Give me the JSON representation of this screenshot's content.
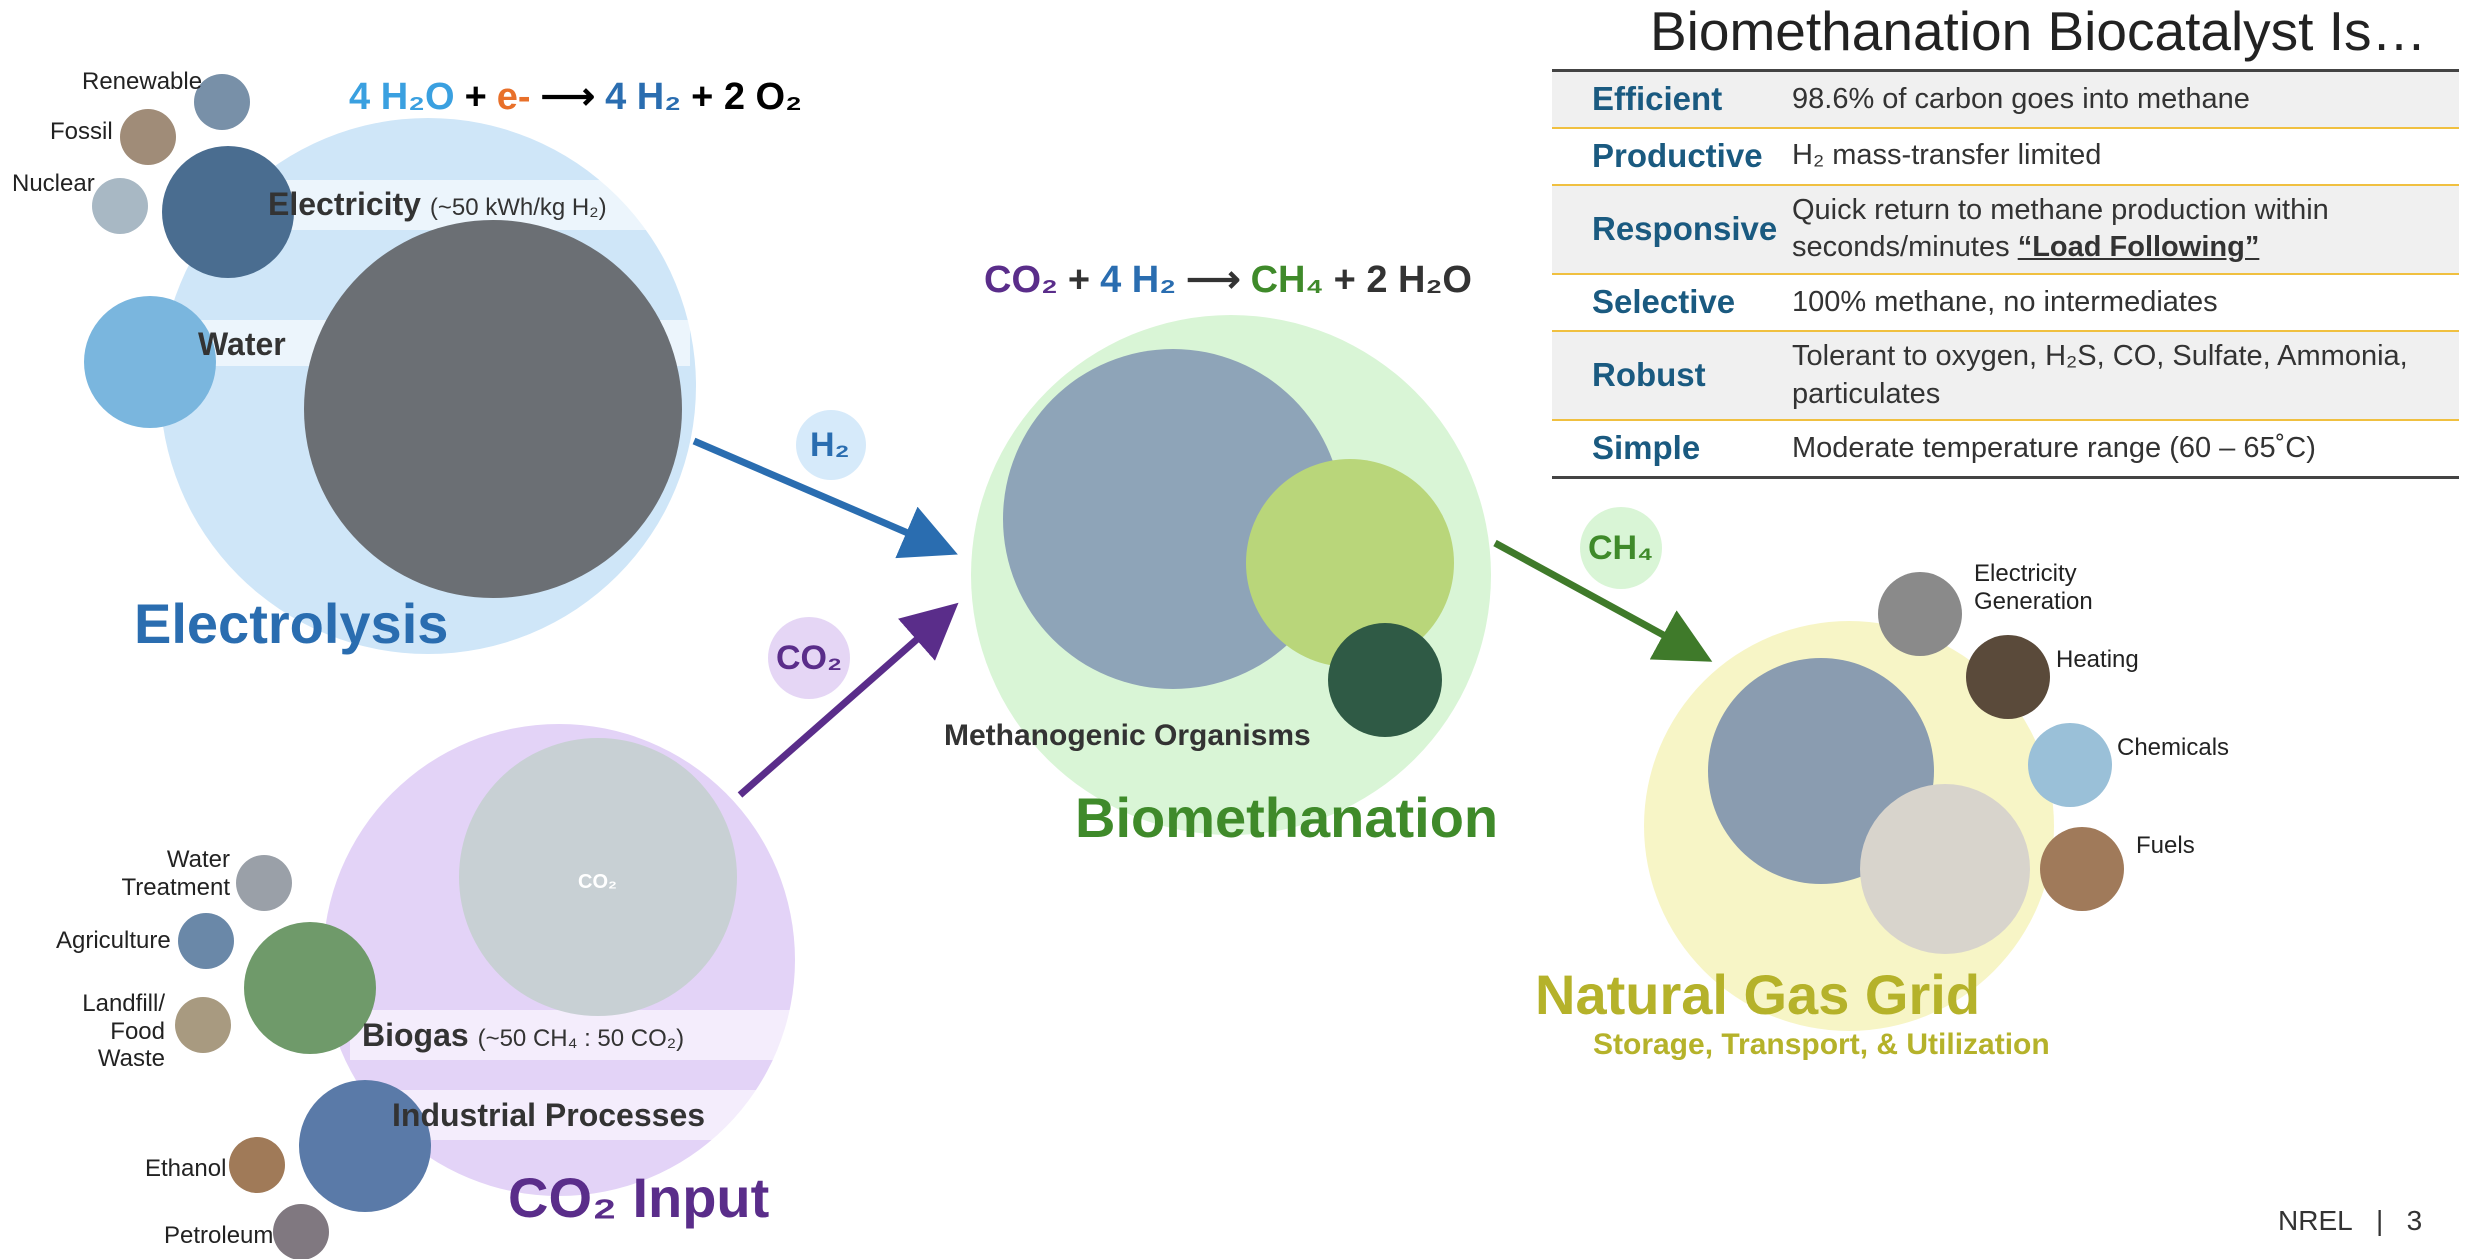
{
  "electrolysis": {
    "equation": [
      "4 H₂O",
      "+",
      "e-",
      "⟶",
      "4 H₂",
      "+ 2 O₂"
    ],
    "sources": [
      "Renewable",
      "Fossil",
      "Nuclear"
    ],
    "electricity": {
      "label": "Electricity",
      "note": "(~50 kWh/kg H₂)"
    },
    "water": "Water",
    "title": "Electrolysis"
  },
  "flows": {
    "h2": "H₂",
    "co2": "CO₂",
    "ch4": "CH₄"
  },
  "co2_input": {
    "sources": [
      "Water Treatment",
      "Agriculture",
      "Landfill/ Food Waste",
      "Ethanol",
      "Petroleum"
    ],
    "biogas": {
      "label": "Biogas",
      "note": "(~50 CH₄ : 50 CO₂)"
    },
    "industrial": "Industrial Processes",
    "tank_label": "CO₂",
    "title": "CO₂ Input"
  },
  "biomethanation": {
    "equation": [
      "CO₂",
      "+",
      "4 H₂",
      "⟶",
      "CH₄",
      "+ 2 H₂O"
    ],
    "organisms": "Methanogenic Organisms",
    "title": "Biomethanation"
  },
  "grid": {
    "uses": [
      "Electricity Generation",
      "Heating",
      "Chemicals",
      "Fuels"
    ],
    "title": "Natural Gas Grid",
    "subtitle": "Storage, Transport, & Utilization"
  },
  "table": {
    "title": "Biomethanation Biocatalyst Is…",
    "rows": [
      {
        "label": "Efficient",
        "text": "98.6% of carbon goes into methane"
      },
      {
        "label": "Productive",
        "text": "H₂ mass-transfer limited"
      },
      {
        "label": "Responsive",
        "text": "Quick return to methane production within seconds/minutes",
        "emphasis": "“Load Following”"
      },
      {
        "label": "Selective",
        "text": "100% methane, no intermediates"
      },
      {
        "label": "Robust",
        "text": "Tolerant to oxygen, H₂S, CO, Sulfate, Ammonia, particulates"
      },
      {
        "label": "Simple",
        "text": "Moderate temperature range (60 – 65˚C)"
      }
    ]
  },
  "footer": {
    "org": "NREL",
    "separator": "|",
    "page": "3"
  }
}
